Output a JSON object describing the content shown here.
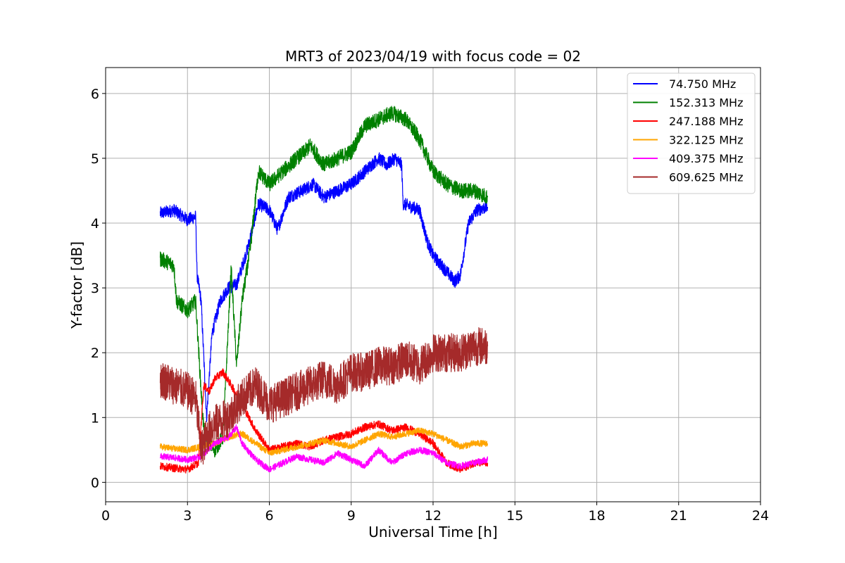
{
  "chart_data": {
    "type": "line",
    "title": "MRT3 of 2023/04/19 with focus code = 02",
    "xlabel": "Universal Time [h]",
    "ylabel": "Y-factor [dB]",
    "xlim": [
      0,
      24
    ],
    "ylim": [
      -0.3,
      6.4
    ],
    "xticks": [
      0,
      3,
      6,
      9,
      12,
      15,
      18,
      21,
      24
    ],
    "yticks": [
      0,
      1,
      2,
      3,
      4,
      5,
      6
    ],
    "grid": true,
    "legend_position": "top-right",
    "series": [
      {
        "name": " 74.750 MHz",
        "color": "#0000ff",
        "noise": 0.1,
        "x": [
          2.0,
          2.5,
          3.0,
          3.3,
          3.35,
          3.5,
          3.7,
          3.9,
          4.2,
          4.5,
          4.8,
          5.2,
          5.6,
          6.0,
          6.3,
          6.7,
          7.2,
          7.6,
          8.0,
          8.5,
          9.0,
          9.5,
          10.0,
          10.3,
          10.6,
          10.85,
          10.9,
          11.5,
          11.8,
          12.0,
          12.4,
          12.8,
          13.0,
          13.3,
          13.6,
          14.0
        ],
        "y": [
          4.15,
          4.2,
          4.05,
          4.1,
          3.2,
          2.8,
          1.0,
          2.3,
          2.8,
          3.0,
          3.05,
          3.6,
          4.3,
          4.2,
          3.9,
          4.4,
          4.5,
          4.6,
          4.4,
          4.5,
          4.6,
          4.8,
          5.0,
          4.9,
          5.0,
          4.9,
          4.3,
          4.2,
          3.7,
          3.5,
          3.3,
          3.1,
          3.2,
          4.0,
          4.2,
          4.25
        ]
      },
      {
        "name": "152.313 MHz",
        "color": "#008000",
        "noise": 0.12,
        "x": [
          2.0,
          2.5,
          2.6,
          3.0,
          3.3,
          3.5,
          3.6,
          3.8,
          4.0,
          4.3,
          4.6,
          4.8,
          5.0,
          5.3,
          5.6,
          6.0,
          6.5,
          7.0,
          7.3,
          7.5,
          8.0,
          8.5,
          9.0,
          9.5,
          10.0,
          10.5,
          11.0,
          11.5,
          12.0,
          12.5,
          13.0,
          13.5,
          14.0
        ],
        "y": [
          3.45,
          3.35,
          2.8,
          2.65,
          2.8,
          1.4,
          0.8,
          0.6,
          0.5,
          0.7,
          3.3,
          1.8,
          2.8,
          3.6,
          4.8,
          4.6,
          4.8,
          5.0,
          5.1,
          5.2,
          4.9,
          5.0,
          5.1,
          5.5,
          5.6,
          5.7,
          5.6,
          5.3,
          4.8,
          4.6,
          4.5,
          4.5,
          4.4
        ]
      },
      {
        "name": "247.188 MHz",
        "color": "#ff0000",
        "noise": 0.06,
        "x": [
          2.0,
          2.5,
          3.0,
          3.4,
          3.6,
          3.8,
          4.0,
          4.3,
          4.6,
          5.0,
          5.5,
          6.0,
          6.5,
          7.0,
          7.5,
          8.0,
          8.5,
          9.0,
          9.5,
          10.0,
          10.5,
          11.0,
          11.5,
          12.0,
          12.5,
          13.0,
          13.5,
          14.0
        ],
        "y": [
          0.25,
          0.22,
          0.2,
          0.3,
          1.5,
          1.4,
          1.6,
          1.7,
          1.5,
          1.2,
          0.8,
          0.5,
          0.55,
          0.6,
          0.55,
          0.65,
          0.7,
          0.75,
          0.85,
          0.9,
          0.8,
          0.85,
          0.75,
          0.6,
          0.3,
          0.2,
          0.3,
          0.3
        ]
      },
      {
        "name": "322.125 MHz",
        "color": "#ffa500",
        "noise": 0.05,
        "x": [
          2.0,
          2.5,
          3.0,
          3.5,
          4.0,
          4.5,
          5.0,
          5.5,
          6.0,
          6.5,
          7.0,
          7.5,
          8.0,
          8.5,
          9.0,
          9.5,
          10.0,
          10.5,
          11.0,
          11.5,
          12.0,
          12.5,
          13.0,
          13.5,
          14.0
        ],
        "y": [
          0.55,
          0.52,
          0.5,
          0.55,
          0.6,
          0.7,
          0.75,
          0.6,
          0.45,
          0.5,
          0.55,
          0.6,
          0.65,
          0.6,
          0.55,
          0.65,
          0.75,
          0.7,
          0.75,
          0.8,
          0.75,
          0.65,
          0.55,
          0.6,
          0.6
        ]
      },
      {
        "name": "409.375 MHz",
        "color": "#ff00ff",
        "noise": 0.05,
        "x": [
          2.0,
          2.5,
          3.0,
          3.5,
          4.0,
          4.5,
          4.8,
          5.0,
          5.5,
          6.0,
          6.5,
          7.0,
          7.5,
          8.0,
          8.5,
          9.0,
          9.5,
          10.0,
          10.5,
          11.0,
          11.5,
          12.0,
          12.5,
          13.0,
          13.5,
          14.0
        ],
        "y": [
          0.4,
          0.38,
          0.35,
          0.4,
          0.6,
          0.7,
          0.85,
          0.6,
          0.35,
          0.2,
          0.3,
          0.4,
          0.35,
          0.3,
          0.45,
          0.35,
          0.25,
          0.5,
          0.3,
          0.45,
          0.5,
          0.45,
          0.3,
          0.25,
          0.3,
          0.35
        ]
      },
      {
        "name": "609.625 MHz",
        "color": "#a52a2a",
        "noise": 0.3,
        "x": [
          2.0,
          2.5,
          3.0,
          3.3,
          3.5,
          3.8,
          4.0,
          4.5,
          5.0,
          5.5,
          6.0,
          6.5,
          7.0,
          7.5,
          8.0,
          8.5,
          9.0,
          9.5,
          10.0,
          10.5,
          11.0,
          11.5,
          12.0,
          12.5,
          13.0,
          13.5,
          14.0
        ],
        "y": [
          1.6,
          1.5,
          1.4,
          1.3,
          0.5,
          0.8,
          0.9,
          1.0,
          1.3,
          1.5,
          1.2,
          1.3,
          1.4,
          1.5,
          1.6,
          1.5,
          1.7,
          1.7,
          1.8,
          1.8,
          1.9,
          1.8,
          2.0,
          2.0,
          2.0,
          2.1,
          2.1
        ]
      }
    ]
  }
}
